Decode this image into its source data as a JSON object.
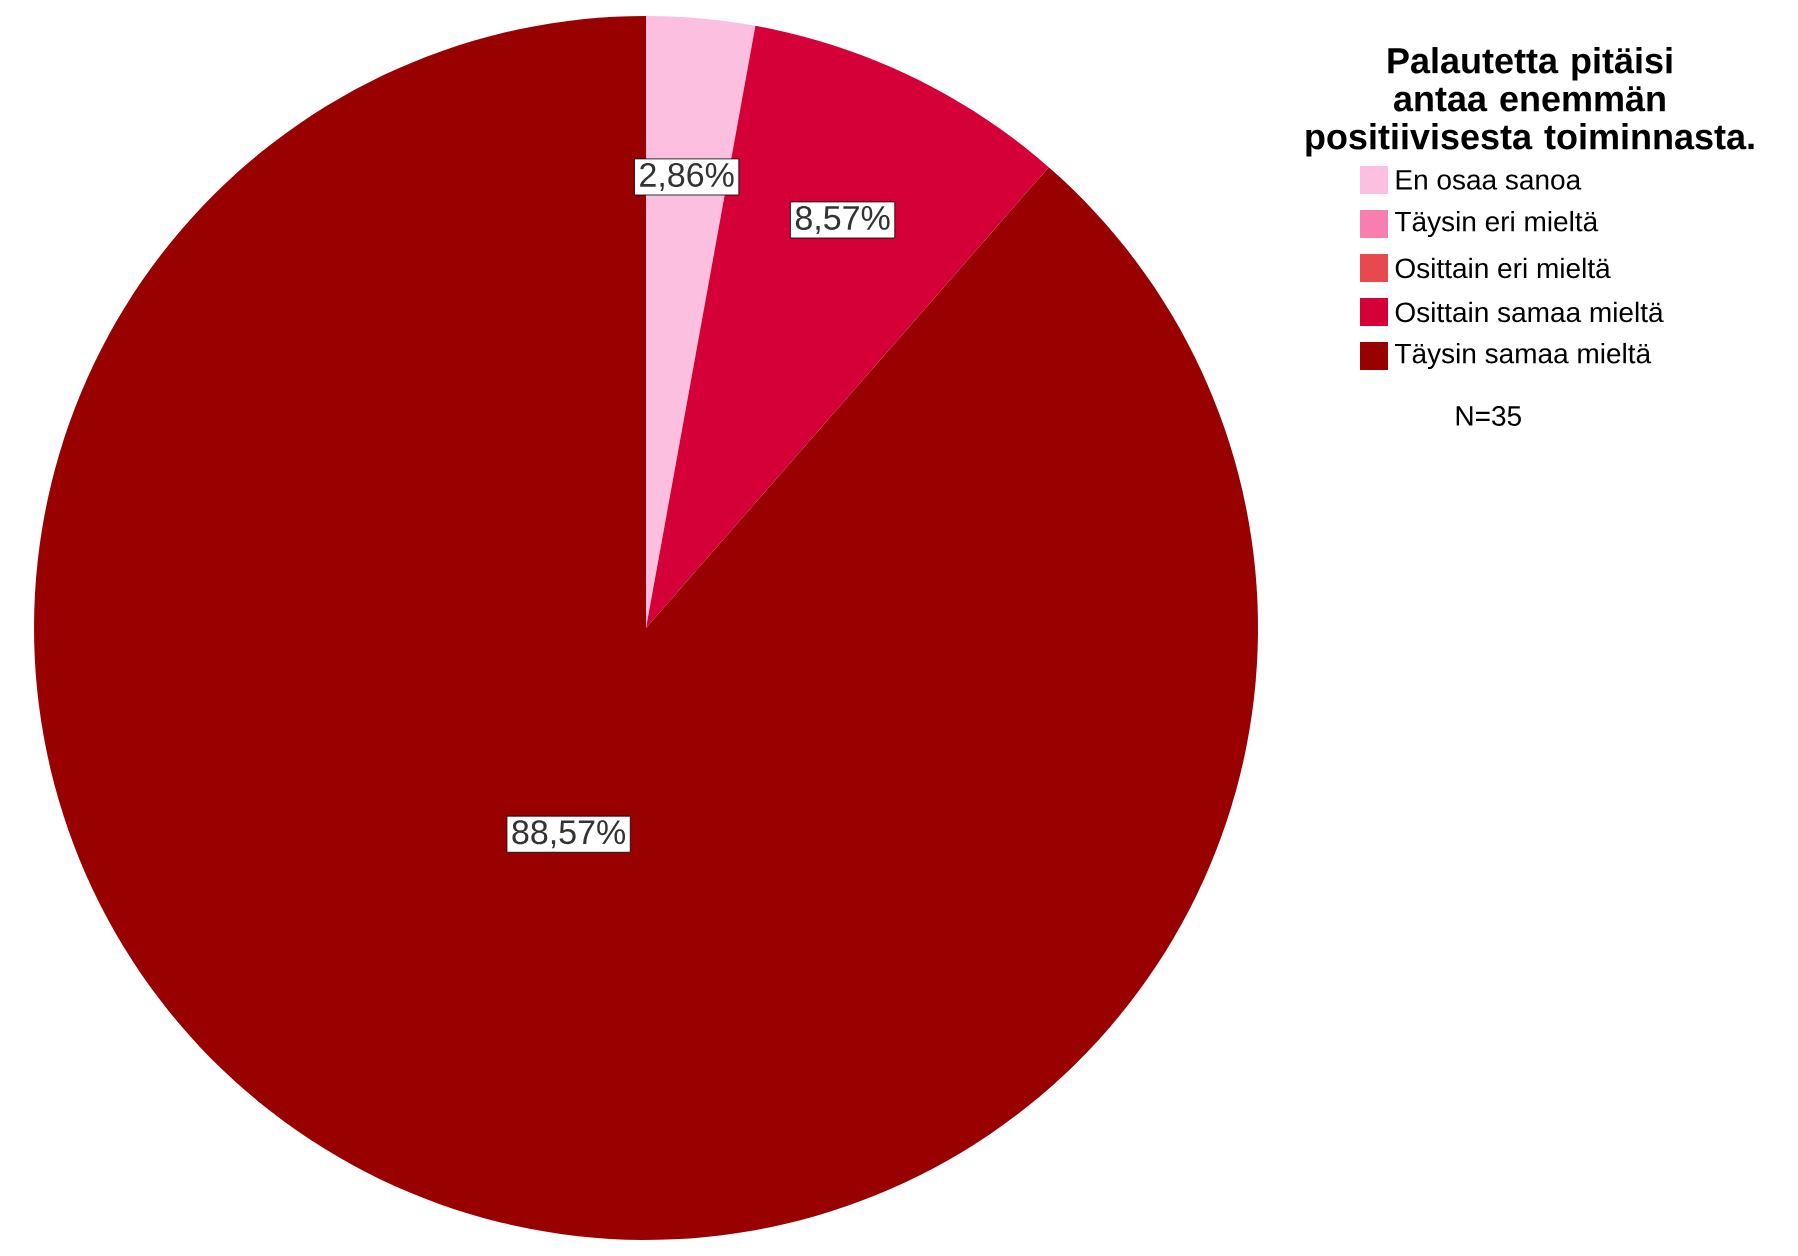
{
  "chart_data": {
    "type": "pie",
    "legend_title": "Palautetta pitäisi antaa enemmän positiivisesta toiminnasta.",
    "categories": [
      "En osaa sanoa",
      "Täysin eri mieltä",
      "Osittain eri mieltä",
      "Osittain samaa mieltä",
      "Täysin samaa mieltä"
    ],
    "values": [
      2.86,
      0,
      0,
      8.57,
      88.57
    ],
    "value_labels": [
      "2,86%",
      null,
      null,
      "8,57%",
      "88,57%"
    ],
    "colors": [
      "#fdbfdf",
      "#f77fb0",
      "#e8494f",
      "#d40037",
      "#990000"
    ],
    "legend": "right",
    "annotations": [
      "N=35"
    ]
  }
}
